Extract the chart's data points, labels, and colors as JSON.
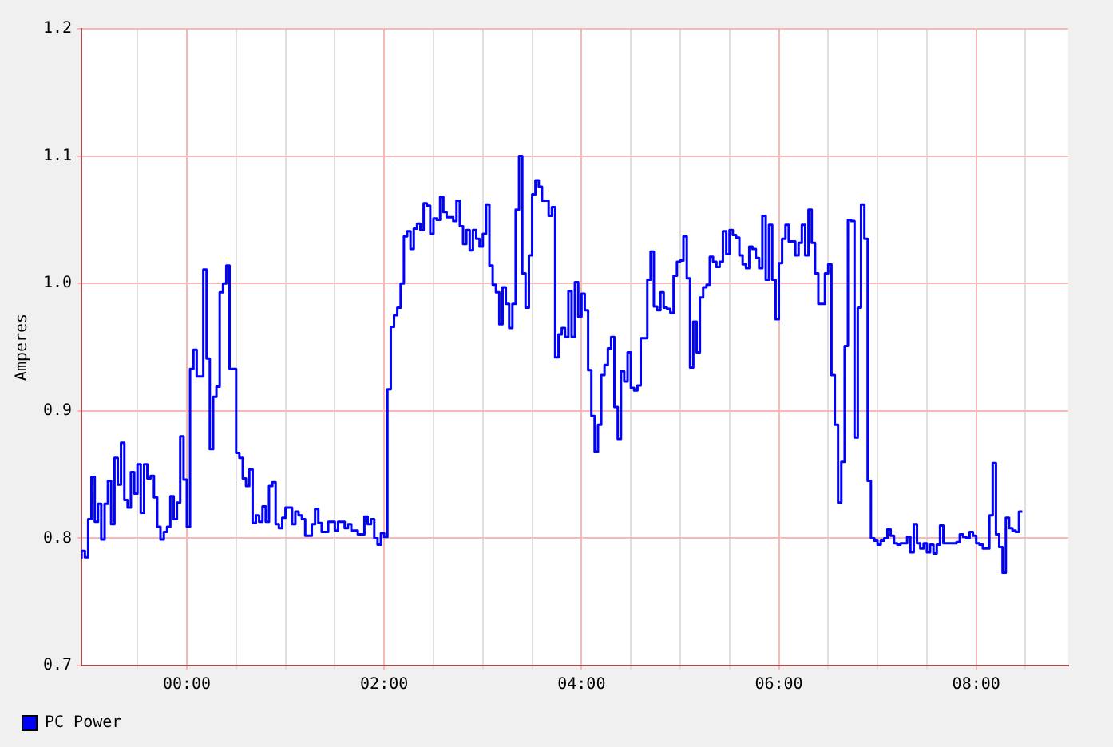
{
  "chart_data": {
    "type": "step",
    "ylabel": "Amperes",
    "xlim": [
      -1.067,
      8.933
    ],
    "ylim": [
      0.7,
      1.2
    ],
    "xticks": [
      {
        "value": -0.5,
        "label": null
      },
      {
        "value": 0,
        "label": "00:00"
      },
      {
        "value": 0.5,
        "label": null
      },
      {
        "value": 1,
        "label": null
      },
      {
        "value": 1.5,
        "label": null
      },
      {
        "value": 2,
        "label": "02:00"
      },
      {
        "value": 2.5,
        "label": null
      },
      {
        "value": 3,
        "label": null
      },
      {
        "value": 3.5,
        "label": null
      },
      {
        "value": 4,
        "label": "04:00"
      },
      {
        "value": 4.5,
        "label": null
      },
      {
        "value": 5,
        "label": null
      },
      {
        "value": 5.5,
        "label": null
      },
      {
        "value": 6,
        "label": "06:00"
      },
      {
        "value": 6.5,
        "label": null
      },
      {
        "value": 7,
        "label": null
      },
      {
        "value": 7.5,
        "label": null
      },
      {
        "value": 8,
        "label": "08:00"
      },
      {
        "value": 8.5,
        "label": null
      }
    ],
    "yticks": [
      0.7,
      0.8,
      0.9,
      {
        "value": 1,
        "label": "1.0"
      },
      1.1,
      1.2
    ],
    "grid": true,
    "legend": "bottom left",
    "series": [
      {
        "name": "PC Power",
        "color": "#0000ff",
        "x": [
          -1.067,
          -1.033,
          -1,
          -0.967,
          -0.933,
          -0.9,
          -0.867,
          -0.833,
          -0.8,
          -0.767,
          -0.733,
          -0.7,
          -0.667,
          -0.633,
          -0.6,
          -0.567,
          -0.533,
          -0.5,
          -0.467,
          -0.433,
          -0.4,
          -0.367,
          -0.333,
          -0.3,
          -0.267,
          -0.233,
          -0.2,
          -0.167,
          -0.133,
          -0.1,
          -0.067,
          -0.033,
          0,
          0.033,
          0.067,
          0.1,
          0.167,
          0.2,
          0.233,
          0.267,
          0.3,
          0.333,
          0.367,
          0.4,
          0.433,
          0.5,
          0.533,
          0.567,
          0.6,
          0.633,
          0.667,
          0.7,
          0.733,
          0.767,
          0.8,
          0.833,
          0.867,
          0.9,
          0.933,
          0.967,
          1,
          1.067,
          1.1,
          1.133,
          1.167,
          1.2,
          1.267,
          1.3,
          1.333,
          1.367,
          1.433,
          1.5,
          1.533,
          1.6,
          1.633,
          1.667,
          1.733,
          1.8,
          1.833,
          1.867,
          1.9,
          1.933,
          1.967,
          2,
          2.033,
          2.067,
          2.1,
          2.133,
          2.167,
          2.2,
          2.233,
          2.267,
          2.3,
          2.333,
          2.367,
          2.4,
          2.433,
          2.467,
          2.5,
          2.533,
          2.567,
          2.6,
          2.633,
          2.7,
          2.733,
          2.767,
          2.8,
          2.833,
          2.867,
          2.9,
          2.933,
          2.967,
          3,
          3.033,
          3.067,
          3.1,
          3.133,
          3.167,
          3.2,
          3.233,
          3.267,
          3.3,
          3.333,
          3.367,
          3.4,
          3.433,
          3.467,
          3.5,
          3.533,
          3.567,
          3.6,
          3.667,
          3.7,
          3.733,
          3.767,
          3.8,
          3.833,
          3.867,
          3.9,
          3.933,
          3.967,
          4,
          4.033,
          4.067,
          4.1,
          4.133,
          4.167,
          4.2,
          4.233,
          4.267,
          4.3,
          4.333,
          4.367,
          4.4,
          4.433,
          4.467,
          4.5,
          4.533,
          4.567,
          4.6,
          4.667,
          4.7,
          4.733,
          4.767,
          4.8,
          4.833,
          4.867,
          4.9,
          4.933,
          4.967,
          5,
          5.033,
          5.067,
          5.1,
          5.133,
          5.167,
          5.2,
          5.233,
          5.267,
          5.3,
          5.333,
          5.367,
          5.4,
          5.433,
          5.467,
          5.5,
          5.533,
          5.567,
          5.6,
          5.633,
          5.667,
          5.7,
          5.733,
          5.767,
          5.8,
          5.833,
          5.867,
          5.9,
          5.933,
          5.967,
          6,
          6.033,
          6.067,
          6.1,
          6.133,
          6.167,
          6.2,
          6.233,
          6.267,
          6.3,
          6.333,
          6.367,
          6.4,
          6.433,
          6.467,
          6.5,
          6.533,
          6.567,
          6.6,
          6.633,
          6.667,
          6.7,
          6.733,
          6.767,
          6.8,
          6.833,
          6.867,
          6.9,
          6.933,
          6.967,
          7,
          7.033,
          7.067,
          7.1,
          7.133,
          7.167,
          7.2,
          7.233,
          7.267,
          7.3,
          7.333,
          7.367,
          7.4,
          7.433,
          7.467,
          7.5,
          7.533,
          7.567,
          7.6,
          7.633,
          7.667,
          7.7,
          7.733,
          7.767,
          7.8,
          7.833,
          7.867,
          7.9,
          7.933,
          7.967,
          8,
          8.033,
          8.067,
          8.1,
          8.133,
          8.167,
          8.2,
          8.233,
          8.267,
          8.3,
          8.333,
          8.367,
          8.4,
          8.433,
          8.467
        ],
        "values": [
          0.784,
          0.79,
          0.785,
          0.815,
          0.848,
          0.813,
          0.827,
          0.799,
          0.827,
          0.845,
          0.811,
          0.863,
          0.842,
          0.875,
          0.83,
          0.824,
          0.852,
          0.835,
          0.858,
          0.82,
          0.858,
          0.847,
          0.849,
          0.832,
          0.809,
          0.799,
          0.805,
          0.809,
          0.833,
          0.815,
          0.828,
          0.88,
          0.846,
          0.809,
          0.933,
          0.948,
          0.927,
          1.011,
          0.941,
          0.87,
          0.911,
          0.919,
          0.993,
          1,
          1.014,
          0.933,
          0.867,
          0.863,
          0.847,
          0.841,
          0.854,
          0.812,
          0.818,
          0.813,
          0.825,
          0.813,
          0.841,
          0.844,
          0.811,
          0.808,
          0.816,
          0.824,
          0.811,
          0.821,
          0.818,
          0.815,
          0.802,
          0.811,
          0.823,
          0.812,
          0.805,
          0.813,
          0.806,
          0.813,
          0.808,
          0.811,
          0.806,
          0.803,
          0.817,
          0.811,
          0.815,
          0.8,
          0.795,
          0.804,
          0.801,
          0.917,
          0.966,
          0.975,
          0.981,
          1,
          1.037,
          1.041,
          1.027,
          1.043,
          1.047,
          1.042,
          1.063,
          1.061,
          1.039,
          1.051,
          1.05,
          1.068,
          1.056,
          1.052,
          1.049,
          1.065,
          1.045,
          1.031,
          1.042,
          1.026,
          1.042,
          1.035,
          1.029,
          1.039,
          1.062,
          1.014,
          0.999,
          0.993,
          0.968,
          0.997,
          0.984,
          0.965,
          0.984,
          1.058,
          1.1,
          1.008,
          0.981,
          1.022,
          1.07,
          1.081,
          1.076,
          1.065,
          1.053,
          1.06,
          0.942,
          0.96,
          0.965,
          0.958,
          0.994,
          0.958,
          1.001,
          0.974,
          0.992,
          0.979,
          0.932,
          0.896,
          0.868,
          0.889,
          0.928,
          0.936,
          0.949,
          0.958,
          0.903,
          0.878,
          0.931,
          0.923,
          0.946,
          0.918,
          0.916,
          0.92,
          0.957,
          1.003,
          1.025,
          0.982,
          0.979,
          0.993,
          0.981,
          0.98,
          0.977,
          1.006,
          1.017,
          1.018,
          1.037,
          1.004,
          0.934,
          0.97,
          0.946,
          0.989,
          0.997,
          0.999,
          1.021,
          1.017,
          1.013,
          1.017,
          1.041,
          1.023,
          1.042,
          1.038,
          1.036,
          1.022,
          1.015,
          1.012,
          1.029,
          1.027,
          1.02,
          1.012,
          1.053,
          1.003,
          1.046,
          1.003,
          0.972,
          1.016,
          1.035,
          1.046,
          1.033,
          1.033,
          1.022,
          1.032,
          1.046,
          1.022,
          1.058,
          1.032,
          1.008,
          0.984,
          0.984,
          1.008,
          1.015,
          0.928,
          0.889,
          0.828,
          0.86,
          0.951,
          1.05,
          1.049,
          0.879,
          0.981,
          1.062,
          1.035,
          0.845,
          0.8,
          0.798,
          0.795,
          0.798,
          0.8,
          0.807,
          0.802,
          0.796,
          0.795,
          0.796,
          0.796,
          0.801,
          0.789,
          0.811,
          0.796,
          0.792,
          0.796,
          0.789,
          0.795,
          0.788,
          0.795,
          0.81,
          0.796,
          0.796,
          0.796,
          0.796,
          0.797,
          0.803,
          0.801,
          0.8,
          0.805,
          0.802,
          0.796,
          0.795,
          0.792,
          0.792,
          0.818,
          0.859,
          0.803,
          0.793,
          0.773,
          0.816,
          0.808,
          0.806,
          0.805,
          0.821
        ]
      }
    ]
  }
}
